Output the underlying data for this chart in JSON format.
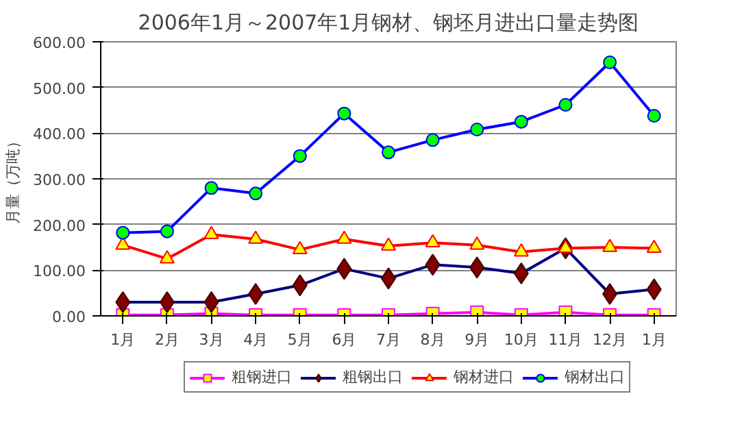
{
  "chart_data": {
    "type": "line",
    "title": "2006年1月～2007年1月钢材、钢坯月进出口量走势图",
    "ylabel": "月量（万吨）",
    "categories": [
      "1月",
      "2月",
      "3月",
      "4月",
      "5月",
      "6月",
      "7月",
      "8月",
      "9月",
      "10月",
      "11月",
      "12月",
      "1月"
    ],
    "series": [
      {
        "name": "粗钢进口",
        "color": "#ff00ff",
        "marker": "square",
        "values": [
          2,
          2,
          5,
          2,
          2,
          2,
          2,
          5,
          8,
          2,
          8,
          2,
          2
        ]
      },
      {
        "name": "粗钢出口",
        "color": "#000080",
        "marker": "diamond",
        "values": [
          30,
          30,
          30,
          48,
          67,
          103,
          82,
          112,
          106,
          93,
          148,
          48,
          58
        ]
      },
      {
        "name": "钢材进口",
        "color": "#ff0000",
        "marker": "triangle",
        "values": [
          155,
          125,
          178,
          168,
          145,
          168,
          153,
          160,
          155,
          140,
          148,
          150,
          148
        ]
      },
      {
        "name": "钢材出口",
        "color": "#0000ff",
        "marker": "circle",
        "values": [
          182,
          185,
          280,
          268,
          350,
          443,
          358,
          385,
          408,
          425,
          462,
          555,
          438
        ]
      }
    ],
    "ylim": [
      0,
      600
    ],
    "yticks": [
      {
        "value": 0,
        "label": "0.00"
      },
      {
        "value": 100,
        "label": "100.00"
      },
      {
        "value": 200,
        "label": "200.00"
      },
      {
        "value": 300,
        "label": "300.00"
      },
      {
        "value": 400,
        "label": "400.00"
      },
      {
        "value": 500,
        "label": "500.00"
      },
      {
        "value": 600,
        "label": "600.00"
      }
    ],
    "grid": "y",
    "legend": "bottom",
    "line_style": "solid"
  }
}
